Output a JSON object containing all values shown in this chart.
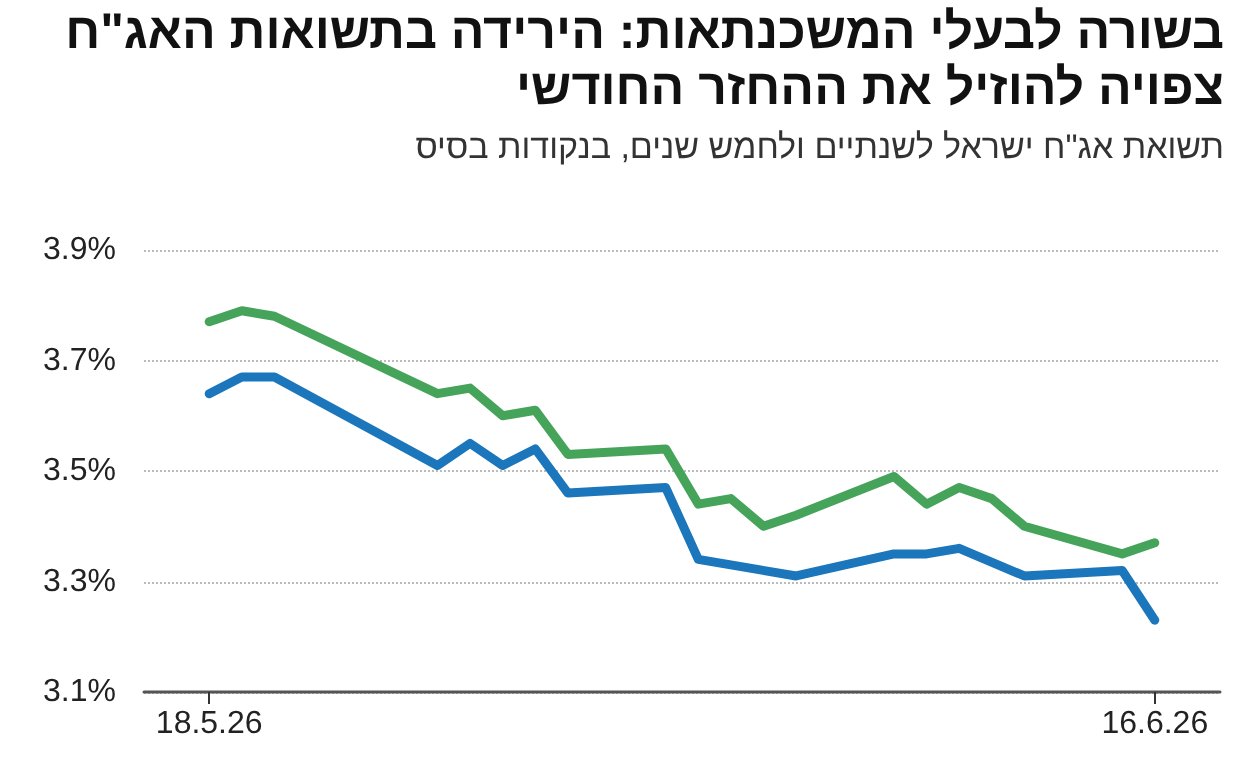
{
  "chart_data": {
    "type": "line",
    "title": "בשורה לבעלי המשכנתאות: הירידה בתשואות האג\"ח צפויה להוזיל את ההחזר החודשי",
    "subtitle": "תשואת אג\"ח ישראל לשנתיים ולחמש שנים, בנקודות בסיס",
    "series": [
      {
        "color": "#45a35a",
        "x": [
          "2026-05-18",
          "2026-05-19",
          "2026-05-20",
          "2026-05-25",
          "2026-05-26",
          "2026-05-27",
          "2026-05-28",
          "2026-05-29",
          "2026-06-01",
          "2026-06-02",
          "2026-06-03",
          "2026-06-04",
          "2026-06-05",
          "2026-06-08",
          "2026-06-09",
          "2026-06-10",
          "2026-06-11",
          "2026-06-12",
          "2026-06-15",
          "2026-06-16"
        ],
        "values": [
          3.77,
          3.79,
          3.78,
          3.64,
          3.65,
          3.6,
          3.61,
          3.53,
          3.54,
          3.44,
          3.45,
          3.4,
          3.42,
          3.49,
          3.44,
          3.47,
          3.45,
          3.4,
          3.35,
          3.37
        ]
      },
      {
        "color": "#1b76bb",
        "x": [
          "2026-05-18",
          "2026-05-19",
          "2026-05-20",
          "2026-05-25",
          "2026-05-26",
          "2026-05-27",
          "2026-05-28",
          "2026-05-29",
          "2026-06-01",
          "2026-06-02",
          "2026-06-05",
          "2026-06-08",
          "2026-06-09",
          "2026-06-10",
          "2026-06-12",
          "2026-06-15",
          "2026-06-16"
        ],
        "values": [
          3.64,
          3.67,
          3.67,
          3.51,
          3.55,
          3.51,
          3.54,
          3.46,
          3.47,
          3.34,
          3.31,
          3.35,
          3.35,
          3.36,
          3.31,
          3.32,
          3.23
        ]
      }
    ],
    "xlim": [
      "2026-05-16",
      "2026-06-18"
    ],
    "xticks": [
      {
        "value": "2026-05-18",
        "label": "18.5.26"
      },
      {
        "value": "2026-06-16",
        "label": "16.6.26"
      }
    ],
    "ylim": [
      3.1,
      3.9
    ],
    "yticks": [
      {
        "value": 3.1,
        "label": "3.1%"
      },
      {
        "value": 3.3,
        "label": "3.3%"
      },
      {
        "value": 3.5,
        "label": "3.5%"
      },
      {
        "value": 3.7,
        "label": "3.7%"
      },
      {
        "value": 3.9,
        "label": "3.9%"
      }
    ],
    "grid": "y",
    "marker": "none",
    "line_style": "solid"
  }
}
